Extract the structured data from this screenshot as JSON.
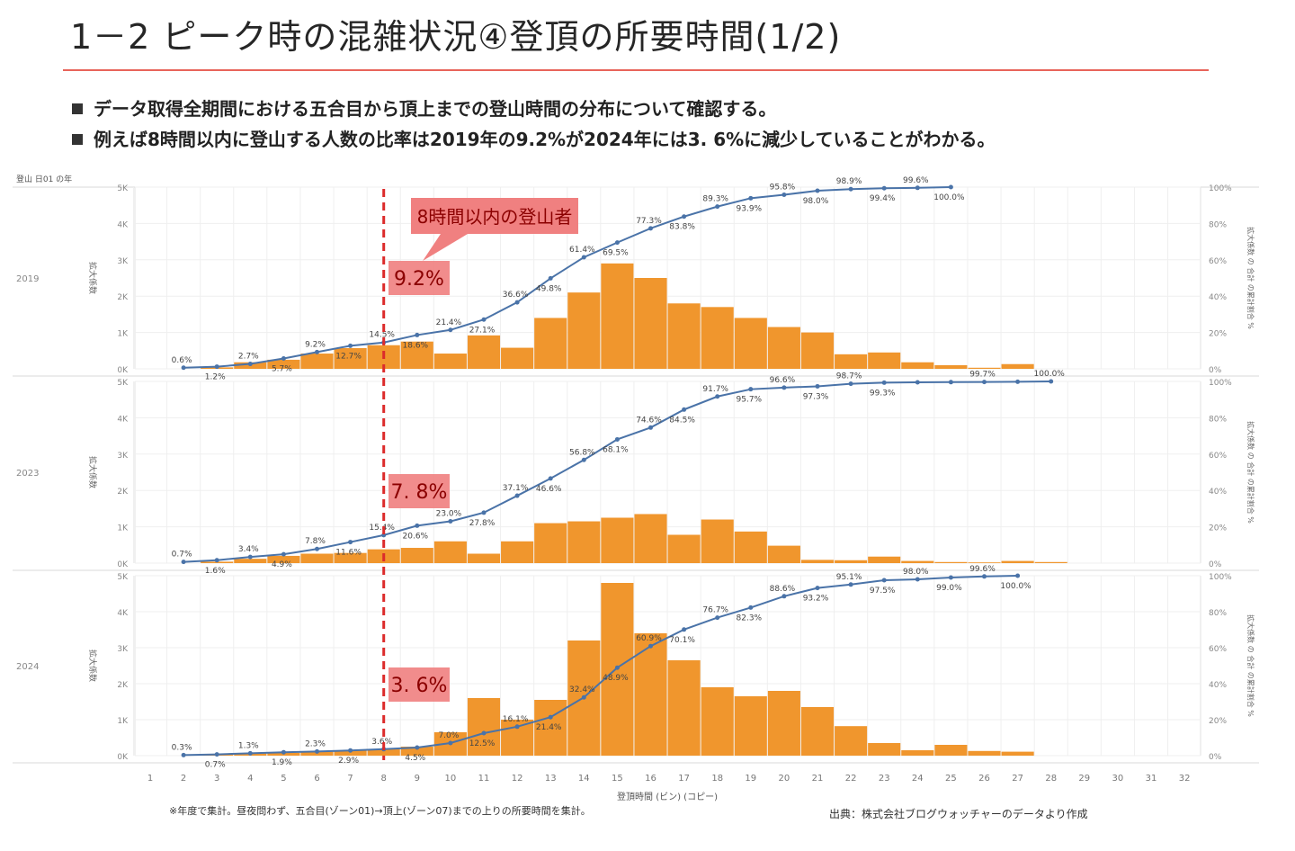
{
  "header": {
    "title": "1－2 ピーク時の混雑状況④登頂の所要時間(1/2)",
    "bullets": [
      "データ取得全期間における五合目から頂上までの登山時間の分布について確認する。",
      "例えば8時間以内に登山する人数の比率は2019年の9.2%が2024年には3. 6%に減少していることがわかる。"
    ]
  },
  "footer": {
    "note": "※年度で集計。昼夜問わず、五合目(ゾーン01)→頂上(ゾーン07)までの上りの所要時間を集計。",
    "source": "出典：株式会社ブログウォッチャーのデータより作成"
  },
  "chart_data": {
    "type": "bar",
    "top_left_label": "登山 日01 の年",
    "left_axis_label": "拡大係数",
    "right_axis_label": "拡大係数 の 合計 の累計割合 %",
    "x_axis_label": "登頂時間 (ビン) (コピー)",
    "x_ticks": [
      "1",
      "2",
      "3",
      "4",
      "5",
      "6",
      "7",
      "8",
      "9",
      "10",
      "11",
      "12",
      "13",
      "14",
      "15",
      "16",
      "17",
      "18",
      "19",
      "20",
      "21",
      "22",
      "23",
      "24",
      "25",
      "26",
      "27",
      "28",
      "29",
      "30",
      "31",
      "32"
    ],
    "right_ticks": [
      "0%",
      "20%",
      "40%",
      "60%",
      "80%",
      "100%"
    ],
    "colors": {
      "bar": "#f0962d",
      "line": "#4a73a8",
      "marker_line": "#dc2b2b",
      "callout": "#f08080"
    },
    "threshold_hour": 8,
    "callout_text": "8時間以内の登山者",
    "panels": [
      {
        "year": "2019",
        "left_ticks": [
          "0K",
          "1K",
          "2K",
          "3K",
          "4K",
          "5K"
        ],
        "y_max": 5000,
        "highlight": "9.2%",
        "bars": [
          [
            3,
            40
          ],
          [
            4,
            180
          ],
          [
            5,
            250
          ],
          [
            6,
            420
          ],
          [
            7,
            570
          ],
          [
            8,
            650
          ],
          [
            9,
            750
          ],
          [
            10,
            420
          ],
          [
            11,
            920
          ],
          [
            12,
            580
          ],
          [
            13,
            1400
          ],
          [
            14,
            2100
          ],
          [
            15,
            2900
          ],
          [
            16,
            2500
          ],
          [
            17,
            1800
          ],
          [
            18,
            1700
          ],
          [
            19,
            1400
          ],
          [
            20,
            1150
          ],
          [
            21,
            1000
          ],
          [
            22,
            400
          ],
          [
            23,
            450
          ],
          [
            24,
            180
          ],
          [
            25,
            100
          ],
          [
            26,
            30
          ],
          [
            27,
            130
          ]
        ],
        "cumulative": [
          [
            2,
            0.6
          ],
          [
            3,
            1.2
          ],
          [
            4,
            2.7
          ],
          [
            5,
            5.7
          ],
          [
            6,
            9.2
          ],
          [
            7,
            12.7
          ],
          [
            8,
            14.5
          ],
          [
            9,
            18.6
          ],
          [
            10,
            21.4
          ],
          [
            11,
            27.1
          ],
          [
            12,
            36.6
          ],
          [
            13,
            49.8
          ],
          [
            14,
            61.4
          ],
          [
            15,
            69.5
          ],
          [
            16,
            77.3
          ],
          [
            17,
            83.8
          ],
          [
            18,
            89.3
          ],
          [
            19,
            93.9
          ],
          [
            20,
            95.8
          ],
          [
            21,
            98.0
          ],
          [
            22,
            98.9
          ],
          [
            23,
            99.4
          ],
          [
            24,
            99.6
          ],
          [
            25,
            100.0
          ]
        ],
        "line_x_offset": 1,
        "point_labels": [
          "0.6%",
          "1.2%",
          "2.7%",
          "5.7%",
          "9.2%",
          "12.7%",
          "14.5%",
          "18.6%",
          "21.4%",
          "27.1%",
          "36.6%",
          "49.8%",
          "61.4%",
          "69.5%",
          "77.3%",
          "83.8%",
          "89.3%",
          "93.9%",
          "95.8%",
          "98.0%",
          "98.9%",
          "99.4%",
          "99.6%",
          "100.0%"
        ]
      },
      {
        "year": "2023",
        "left_ticks": [
          "0K",
          "1K",
          "2K",
          "3K",
          "4K",
          "5K"
        ],
        "y_max": 5000,
        "highlight": "7. 8%",
        "bars": [
          [
            3,
            40
          ],
          [
            4,
            120
          ],
          [
            5,
            200
          ],
          [
            6,
            260
          ],
          [
            7,
            280
          ],
          [
            8,
            380
          ],
          [
            9,
            420
          ],
          [
            10,
            600
          ],
          [
            11,
            260
          ],
          [
            12,
            600
          ],
          [
            13,
            1100
          ],
          [
            14,
            1150
          ],
          [
            15,
            1250
          ],
          [
            16,
            1350
          ],
          [
            17,
            780
          ],
          [
            18,
            1200
          ],
          [
            19,
            870
          ],
          [
            20,
            480
          ],
          [
            21,
            90
          ],
          [
            22,
            80
          ],
          [
            23,
            180
          ],
          [
            24,
            60
          ],
          [
            25,
            30
          ],
          [
            26,
            20
          ],
          [
            27,
            60
          ],
          [
            28,
            30
          ]
        ],
        "cumulative": [
          [
            2,
            0.7
          ],
          [
            3,
            1.6
          ],
          [
            4,
            3.4
          ],
          [
            5,
            4.9
          ],
          [
            6,
            7.8
          ],
          [
            7,
            11.6
          ],
          [
            8,
            15.4
          ],
          [
            9,
            20.6
          ],
          [
            10,
            23.0
          ],
          [
            11,
            27.8
          ],
          [
            12,
            37.1
          ],
          [
            13,
            46.6
          ],
          [
            14,
            56.8
          ],
          [
            15,
            68.1
          ],
          [
            16,
            74.6
          ],
          [
            17,
            84.5
          ],
          [
            18,
            91.7
          ],
          [
            19,
            95.7
          ],
          [
            20,
            96.6
          ],
          [
            21,
            97.3
          ],
          [
            22,
            98.7
          ],
          [
            23,
            99.3
          ],
          [
            24,
            99.5
          ],
          [
            25,
            99.6
          ],
          [
            26,
            99.7
          ],
          [
            27,
            99.8
          ],
          [
            28,
            100.0
          ]
        ],
        "line_x_offset": 1,
        "point_labels": [
          "0.7%",
          "1.6%",
          "3.4%",
          "4.9%",
          "7.8%",
          "11.6%",
          "15.4%",
          "20.6%",
          "23.0%",
          "27.8%",
          "37.1%",
          "46.6%",
          "56.8%",
          "68.1%",
          "74.6%",
          "84.5%",
          "91.7%",
          "95.7%",
          "96.6%",
          "97.3%",
          "98.7%",
          "99.3%",
          "",
          "",
          "99.7%",
          "",
          "100.0%"
        ]
      },
      {
        "year": "2024",
        "left_ticks": [
          "0K",
          "1K",
          "2K",
          "3K",
          "4K",
          "5K"
        ],
        "y_max": 5000,
        "highlight": "3. 6%",
        "bars": [
          [
            3,
            30
          ],
          [
            4,
            60
          ],
          [
            5,
            80
          ],
          [
            6,
            110
          ],
          [
            7,
            140
          ],
          [
            8,
            180
          ],
          [
            9,
            250
          ],
          [
            10,
            650
          ],
          [
            11,
            1600
          ],
          [
            12,
            1000
          ],
          [
            13,
            1550
          ],
          [
            14,
            3200
          ],
          [
            15,
            4800
          ],
          [
            16,
            3400
          ],
          [
            17,
            2650
          ],
          [
            18,
            1900
          ],
          [
            19,
            1650
          ],
          [
            20,
            1800
          ],
          [
            21,
            1350
          ],
          [
            22,
            820
          ],
          [
            23,
            350
          ],
          [
            24,
            150
          ],
          [
            25,
            300
          ],
          [
            26,
            130
          ],
          [
            27,
            110
          ]
        ],
        "cumulative": [
          [
            2,
            0.3
          ],
          [
            3,
            0.7
          ],
          [
            4,
            1.3
          ],
          [
            5,
            1.9
          ],
          [
            6,
            2.3
          ],
          [
            7,
            2.9
          ],
          [
            8,
            3.6
          ],
          [
            9,
            4.5
          ],
          [
            10,
            7.0
          ],
          [
            11,
            12.5
          ],
          [
            12,
            16.1
          ],
          [
            13,
            21.4
          ],
          [
            14,
            32.4
          ],
          [
            15,
            48.9
          ],
          [
            16,
            60.9
          ],
          [
            17,
            70.1
          ],
          [
            18,
            76.7
          ],
          [
            19,
            82.3
          ],
          [
            20,
            88.6
          ],
          [
            21,
            93.2
          ],
          [
            22,
            95.1
          ],
          [
            23,
            97.5
          ],
          [
            24,
            98.0
          ],
          [
            25,
            99.0
          ],
          [
            26,
            99.6
          ],
          [
            27,
            100.0
          ]
        ],
        "line_x_offset": 1,
        "point_labels": [
          "0.3%",
          "0.7%",
          "1.3%",
          "1.9%",
          "2.3%",
          "2.9%",
          "3.6%",
          "4.5%",
          "7.0%",
          "12.5%",
          "16.1%",
          "21.4%",
          "32.4%",
          "48.9%",
          "60.9%",
          "70.1%",
          "76.7%",
          "82.3%",
          "88.6%",
          "93.2%",
          "95.1%",
          "97.5%",
          "98.0%",
          "99.0%",
          "99.6%",
          "100.0%"
        ]
      }
    ]
  }
}
